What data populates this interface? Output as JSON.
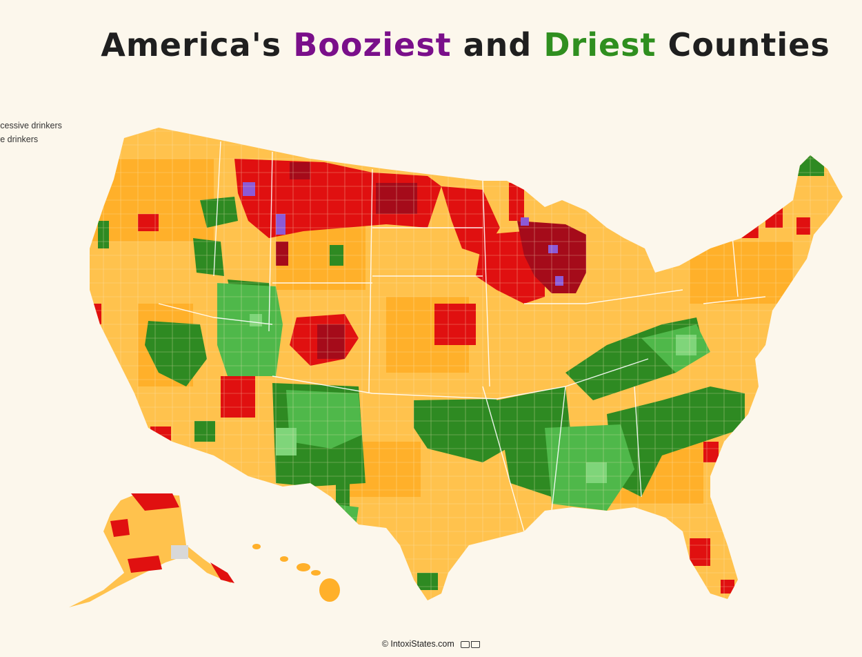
{
  "title": {
    "prefix": "America's ",
    "boozy_word": "Booziest",
    "middle": " and ",
    "dry_word": "Driest",
    "suffix": " Counties"
  },
  "legend": {
    "items": [
      {
        "label": "xcessive drinkers"
      },
      {
        "label": "ve drinkers"
      }
    ]
  },
  "footer": {
    "credit": "© IntoxiStates.com",
    "icons": [
      "comment-icon",
      "share-icon"
    ]
  },
  "colors": {
    "background": "#fcf7ec",
    "title_text": "#1f1f1f",
    "boozy_accent": "#7a0f8a",
    "dry_accent": "#2f8f1f",
    "very_high": "#a50b1a",
    "high": "#e01010",
    "above_avg": "#ffb02a",
    "average": "#ffc24d",
    "below_avg": "#4fb84a",
    "low": "#2e8a22",
    "very_low": "#7fd57a",
    "top_purple": "#8c5ad6",
    "no_data": "#d8d8d8"
  }
}
